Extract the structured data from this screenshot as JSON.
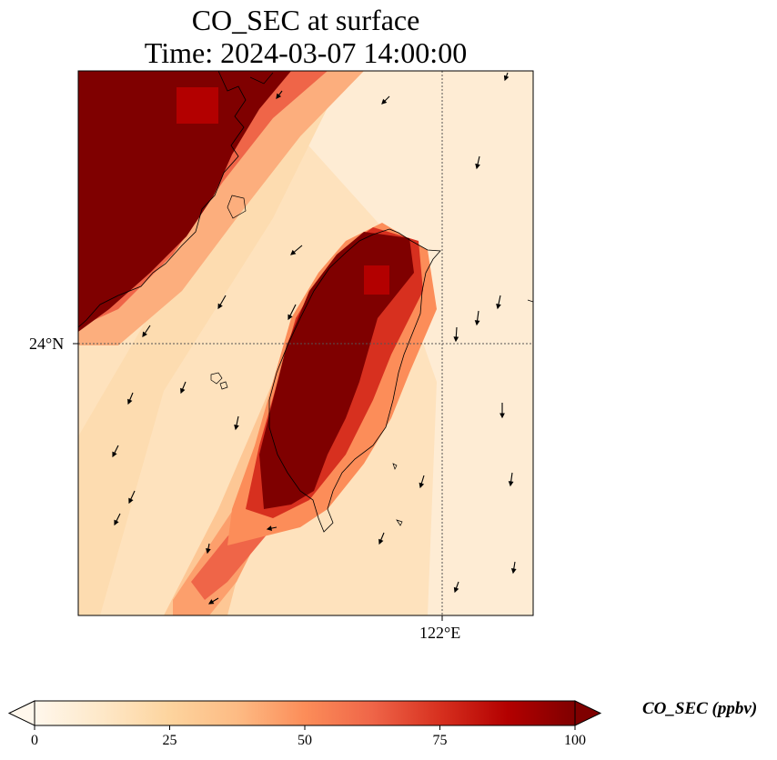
{
  "chart_data": {
    "type": "heatmap",
    "title": "CO_SEC at surface",
    "subtitle": "Time: 2024-03-07 14:00:00",
    "variable": "CO_SEC",
    "colorbar": {
      "label": "CO_SEC (ppbv)",
      "min": 0,
      "max": 100,
      "ticks": [
        "0",
        "25",
        "50",
        "75",
        "100"
      ],
      "extend": "both",
      "colormap": "OrRd",
      "colors": [
        "#fff7ec",
        "#fee8c8",
        "#fdd49e",
        "#fdbb84",
        "#fc8d59",
        "#ef6548",
        "#d7301f",
        "#b30000",
        "#7f0000"
      ]
    },
    "axes": {
      "lat_tick_label": "24°N",
      "lon_tick_label": "122°E",
      "gridlines": "dotted"
    },
    "regions": [
      {
        "name": "mainland coast (northwest)",
        "value": 100
      },
      {
        "name": "Taiwan west plains",
        "value": 100
      },
      {
        "name": "Taiwan Strait background",
        "value": 20
      },
      {
        "name": "open ocean east",
        "value": 10
      }
    ],
    "wind_vectors": "northeasterly flow, arrows pointing south-southwest"
  }
}
